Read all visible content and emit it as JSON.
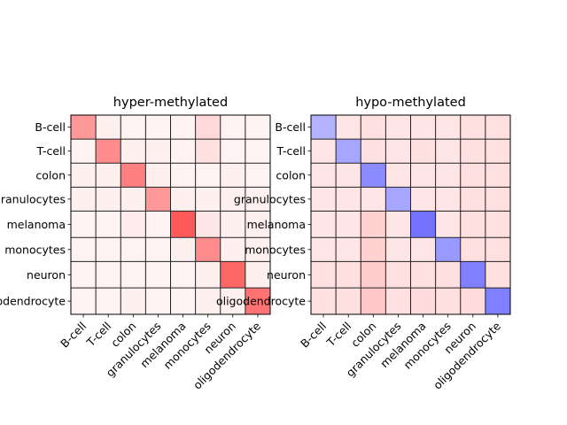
{
  "chart_data": [
    {
      "type": "heatmap",
      "title": "hyper-methylated",
      "row_labels": [
        "B-cell",
        "T-cell",
        "colon",
        "granulocytes",
        "melanoma",
        "monocytes",
        "neuron",
        "oligodendrocyte"
      ],
      "col_labels": [
        "B-cell",
        "T-cell",
        "colon",
        "granulocytes",
        "melanoma",
        "monocytes",
        "neuron",
        "oligodendrocyte"
      ],
      "row_heights": [
        1,
        1,
        1,
        1,
        1.1,
        1,
        1.1,
        1.1
      ],
      "colormap": {
        "low": "#0000ff",
        "mid": "#ffffff",
        "high": "#ff0000"
      },
      "values": [
        [
          0.4,
          0.06,
          0.05,
          0.05,
          0.05,
          0.15,
          0.05,
          0.05
        ],
        [
          0.05,
          0.45,
          0.06,
          0.06,
          0.05,
          0.12,
          0.05,
          0.05
        ],
        [
          0.06,
          0.06,
          0.5,
          0.06,
          0.05,
          0.05,
          0.06,
          0.05
        ],
        [
          0.06,
          0.06,
          0.06,
          0.4,
          0.06,
          0.06,
          0.06,
          0.06
        ],
        [
          0.05,
          0.05,
          0.08,
          0.05,
          0.65,
          0.1,
          0.06,
          0.06
        ],
        [
          0.05,
          0.05,
          0.05,
          0.05,
          0.06,
          0.45,
          0.06,
          0.06
        ],
        [
          0.05,
          0.05,
          0.05,
          0.05,
          0.05,
          0.06,
          0.6,
          0.06
        ],
        [
          0.05,
          0.05,
          0.06,
          0.05,
          0.05,
          0.06,
          0.06,
          0.55
        ]
      ]
    },
    {
      "type": "heatmap",
      "title": "hypo-methylated",
      "row_labels": [
        "B-cell",
        "T-cell",
        "colon",
        "granulocytes",
        "melanoma",
        "monocytes",
        "neuron",
        "oligodendrocyte"
      ],
      "col_labels": [
        "B-cell",
        "T-cell",
        "colon",
        "granulocytes",
        "melanoma",
        "monocytes",
        "neuron",
        "oligodendrocyte"
      ],
      "row_heights": [
        1,
        1,
        1,
        1,
        1.1,
        1,
        1.1,
        1.1
      ],
      "colormap": {
        "low": "#0000ff",
        "mid": "#ffffff",
        "high": "#ff0000"
      },
      "values": [
        [
          -0.3,
          0.1,
          0.12,
          0.1,
          0.1,
          0.1,
          0.12,
          0.12
        ],
        [
          0.1,
          -0.35,
          0.12,
          0.1,
          0.12,
          0.1,
          0.12,
          0.12
        ],
        [
          0.1,
          0.1,
          -0.45,
          0.1,
          0.1,
          0.1,
          0.12,
          0.12
        ],
        [
          0.1,
          0.1,
          0.1,
          -0.35,
          0.1,
          0.1,
          0.12,
          0.12
        ],
        [
          0.1,
          0.1,
          0.18,
          0.1,
          -0.55,
          0.1,
          0.12,
          0.12
        ],
        [
          0.1,
          0.1,
          0.18,
          0.1,
          0.1,
          -0.4,
          0.12,
          0.12
        ],
        [
          0.12,
          0.12,
          0.2,
          0.12,
          0.12,
          0.12,
          -0.5,
          0.12
        ],
        [
          0.12,
          0.12,
          0.22,
          0.12,
          0.14,
          0.12,
          0.14,
          -0.5
        ]
      ]
    }
  ]
}
